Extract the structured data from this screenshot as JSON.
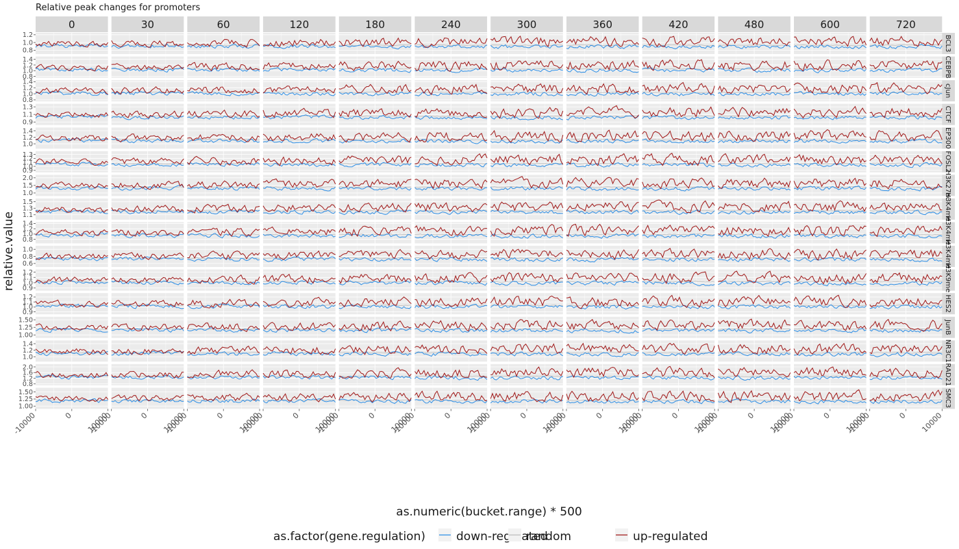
{
  "chart_data": {
    "type": "line",
    "title": "Relative peak changes for promoters",
    "xlabel": "as.numeric(bucket.range) * 500",
    "ylabel": "relative.value",
    "grid": true,
    "legend_position": "bottom",
    "legend_title": "as.factor(gene.regulation)",
    "series": [
      {
        "name": "down-regulated",
        "color": "#2E8FE6"
      },
      {
        "name": "random",
        "color": "#BDBDBD"
      },
      {
        "name": "up-regulated",
        "color": "#A01818"
      }
    ],
    "xlim": [
      -10000,
      10000
    ],
    "x_ticks": [
      "-10000",
      "0",
      "10000"
    ],
    "timepoints": [
      "0",
      "30",
      "60",
      "120",
      "180",
      "240",
      "300",
      "360",
      "420",
      "480",
      "600",
      "720"
    ],
    "marks": [
      {
        "name": "BCL3",
        "ylim": [
          0.7,
          1.25
        ],
        "ticks": [
          {
            "v": 1.2,
            "label": "1.2"
          },
          {
            "v": 1.0,
            "label": "1.0"
          },
          {
            "v": 0.8,
            "label": "0.8"
          }
        ]
      },
      {
        "name": "CEBPB",
        "ylim": [
          0.75,
          1.5
        ],
        "ticks": [
          {
            "v": 1.4,
            "label": "1.4"
          },
          {
            "v": 1.2,
            "label": "1.2"
          },
          {
            "v": 1.0,
            "label": "1.0"
          },
          {
            "v": 0.8,
            "label": "0.8"
          }
        ]
      },
      {
        "name": "cJun",
        "ylim": [
          0.75,
          1.45
        ],
        "ticks": [
          {
            "v": 1.4,
            "label": "1.4"
          },
          {
            "v": 1.2,
            "label": "1.2"
          },
          {
            "v": 1.0,
            "label": "1.0"
          },
          {
            "v": 0.8,
            "label": "0.8"
          }
        ]
      },
      {
        "name": "CTCF",
        "ylim": [
          0.82,
          1.38
        ],
        "ticks": [
          {
            "v": 1.3,
            "label": "1.3"
          },
          {
            "v": 1.1,
            "label": "1.1"
          },
          {
            "v": 0.9,
            "label": "0.9"
          }
        ]
      },
      {
        "name": "EP300",
        "ylim": [
          0.85,
          1.5
        ],
        "ticks": [
          {
            "v": 1.4,
            "label": "1.4"
          },
          {
            "v": 1.2,
            "label": "1.2"
          },
          {
            "v": 1.0,
            "label": "1.0"
          }
        ]
      },
      {
        "name": "FOSL2",
        "ylim": [
          0.85,
          1.38
        ],
        "ticks": [
          {
            "v": 1.3,
            "label": "1.3"
          },
          {
            "v": 1.2,
            "label": "1.2"
          },
          {
            "v": 1.1,
            "label": "1.1"
          },
          {
            "v": 1.0,
            "label": "1.0"
          },
          {
            "v": 0.9,
            "label": "0.9"
          }
        ]
      },
      {
        "name": "H3K27ac",
        "label": "H3K27ac",
        "ylim": [
          0.8,
          2.2
        ],
        "ticks": [
          {
            "v": 2.0,
            "label": "2.0"
          },
          {
            "v": 1.5,
            "label": "1.5"
          },
          {
            "v": 1.0,
            "label": "1.0"
          }
        ]
      },
      {
        "name": "H3K4me1",
        "label": "H3K4me1",
        "ylim": [
          0.95,
          1.6
        ],
        "ticks": [
          {
            "v": 1.5,
            "label": "1.5"
          },
          {
            "v": 1.3,
            "label": "1.3"
          },
          {
            "v": 1.1,
            "label": "1.1"
          }
        ]
      },
      {
        "name": "H3K4me2",
        "label": "H3K4me2",
        "ylim": [
          0.65,
          1.45
        ],
        "ticks": [
          {
            "v": 1.4,
            "label": "1.4"
          },
          {
            "v": 1.2,
            "label": "1.2"
          },
          {
            "v": 1.0,
            "label": "1.0"
          },
          {
            "v": 0.8,
            "label": "0.8"
          }
        ]
      },
      {
        "name": "H3K4me3",
        "label": "H3K4me3",
        "ylim": [
          0.5,
          1.1
        ],
        "ticks": [
          {
            "v": 1.0,
            "label": "1.0"
          },
          {
            "v": 0.8,
            "label": "0.8"
          },
          {
            "v": 0.6,
            "label": "0.6"
          }
        ]
      },
      {
        "name": "H3K9me3",
        "label": "H3K9me3",
        "ylim": [
          0.85,
          1.25
        ],
        "ticks": [
          {
            "v": 1.2,
            "label": "1.2"
          },
          {
            "v": 1.1,
            "label": "1.1"
          },
          {
            "v": 1.0,
            "label": "1.0"
          },
          {
            "v": 0.9,
            "label": "0.9"
          }
        ]
      },
      {
        "name": "HES2",
        "ylim": [
          0.85,
          1.28
        ],
        "ticks": [
          {
            "v": 1.2,
            "label": "1.2"
          },
          {
            "v": 1.1,
            "label": "1.1"
          },
          {
            "v": 1.0,
            "label": "1.0"
          },
          {
            "v": 0.9,
            "label": "0.9"
          }
        ]
      },
      {
        "name": "JunB",
        "ylim": [
          0.9,
          1.6
        ],
        "ticks": [
          {
            "v": 1.5,
            "label": "1.50"
          },
          {
            "v": 1.25,
            "label": "1.25"
          },
          {
            "v": 1.0,
            "label": "1.00"
          }
        ]
      },
      {
        "name": "NR3C1",
        "ylim": [
          0.85,
          1.5
        ],
        "ticks": [
          {
            "v": 1.4,
            "label": "1.4"
          },
          {
            "v": 1.2,
            "label": "1.2"
          },
          {
            "v": 1.0,
            "label": "1.0"
          }
        ]
      },
      {
        "name": "RAD21",
        "ylim": [
          0.7,
          2.2
        ],
        "ticks": [
          {
            "v": 2.0,
            "label": "2.0"
          },
          {
            "v": 1.6,
            "label": "1.6"
          },
          {
            "v": 1.2,
            "label": "1.2"
          },
          {
            "v": 0.8,
            "label": "0.8"
          }
        ]
      },
      {
        "name": "SMC3",
        "ylim": [
          0.9,
          1.65
        ],
        "ticks": [
          {
            "v": 1.5,
            "label": "1.50"
          },
          {
            "v": 1.25,
            "label": "1.25"
          },
          {
            "v": 1.0,
            "label": "1.00"
          }
        ]
      }
    ]
  }
}
